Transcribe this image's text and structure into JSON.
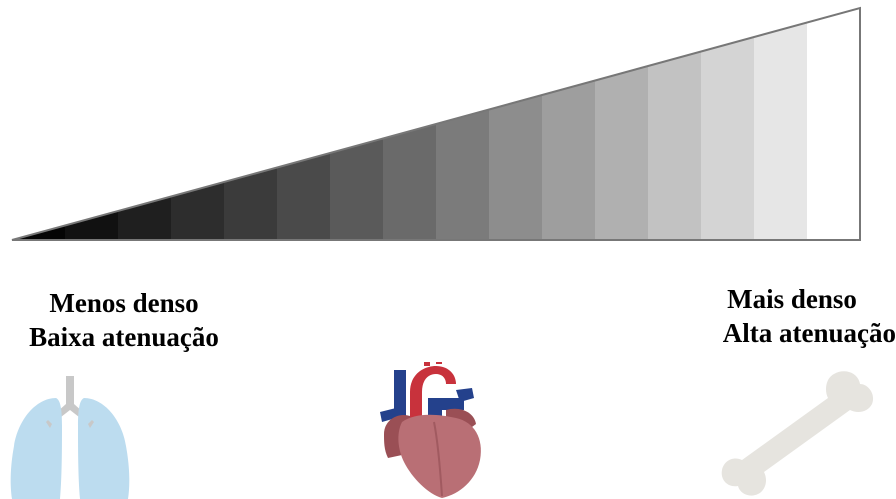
{
  "left": {
    "line1": "Menos denso",
    "line2": "Baixa atenuação"
  },
  "right": {
    "line1": "Mais denso",
    "line2": "Alta atenuação"
  },
  "wedge": {
    "steps": 16,
    "shades": [
      "#050505",
      "#111111",
      "#1f1f1f",
      "#2d2d2d",
      "#3b3b3b",
      "#4a4a4a",
      "#5a5a5a",
      "#6a6a6a",
      "#7b7b7b",
      "#8d8d8d",
      "#9e9e9e",
      "#b0b0b0",
      "#c2c2c2",
      "#d4d4d4",
      "#e6e6e6",
      "#ffffff"
    ],
    "outline_color": "#777777"
  },
  "icons": {
    "left": "lungs-icon",
    "middle": "heart-icon",
    "right": "bone-icon"
  },
  "colors": {
    "lungs": "#bcdcef",
    "trachea": "#c8c8c8",
    "heart_body": "#b96f75",
    "heart_dark": "#9a4f55",
    "aorta_red": "#c8323c",
    "vessel_blue": "#24418c",
    "bone": "#e6e4df"
  }
}
